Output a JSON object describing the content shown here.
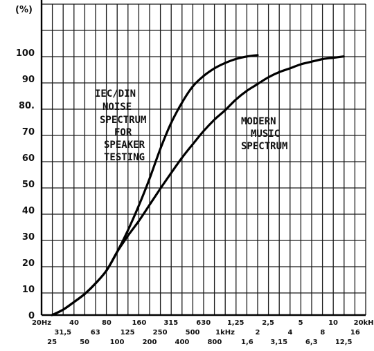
{
  "chart_data": {
    "type": "line",
    "ylabel": "(%)",
    "ylim": [
      0,
      100
    ],
    "yticks": [
      0,
      10,
      20,
      30,
      40,
      50,
      60,
      70,
      80,
      90,
      100
    ],
    "ytick_labels": [
      "0",
      "10",
      "20",
      "30",
      "40",
      "50",
      "60",
      "70",
      "80.",
      "90",
      "100"
    ],
    "xscale": "log",
    "xlim": [
      20,
      20000
    ],
    "x_row1": [
      {
        "hz": 20,
        "label": "20Hz"
      },
      {
        "hz": 40,
        "label": "40"
      },
      {
        "hz": 80,
        "label": "80"
      },
      {
        "hz": 160,
        "label": "160"
      },
      {
        "hz": 315,
        "label": "315"
      },
      {
        "hz": 630,
        "label": "630"
      },
      {
        "hz": 1250,
        "label": "1,25"
      },
      {
        "hz": 2500,
        "label": "2,5"
      },
      {
        "hz": 5000,
        "label": "5"
      },
      {
        "hz": 10000,
        "label": "10"
      },
      {
        "hz": 20000,
        "label": "20kHz"
      }
    ],
    "x_row2": [
      {
        "hz": 31.5,
        "label": "31,5"
      },
      {
        "hz": 63,
        "label": "63"
      },
      {
        "hz": 125,
        "label": "125"
      },
      {
        "hz": 250,
        "label": "250"
      },
      {
        "hz": 500,
        "label": "500"
      },
      {
        "hz": 1000,
        "label": "1kHz"
      },
      {
        "hz": 2000,
        "label": "2"
      },
      {
        "hz": 4000,
        "label": "4"
      },
      {
        "hz": 8000,
        "label": "8"
      },
      {
        "hz": 16000,
        "label": "16"
      }
    ],
    "x_row3": [
      {
        "hz": 25,
        "label": "25"
      },
      {
        "hz": 50,
        "label": "50"
      },
      {
        "hz": 100,
        "label": "100"
      },
      {
        "hz": 200,
        "label": "200"
      },
      {
        "hz": 400,
        "label": "400"
      },
      {
        "hz": 800,
        "label": "800"
      },
      {
        "hz": 1600,
        "label": "1,6"
      },
      {
        "hz": 3150,
        "label": "3,15"
      },
      {
        "hz": 6300,
        "label": "6,3"
      },
      {
        "hz": 12500,
        "label": "12,5"
      }
    ],
    "series": [
      {
        "name": "IEC/DIN NOISE SPECTRUM FOR SPEAKER TESTING",
        "points": [
          [
            25,
            0
          ],
          [
            31.5,
            2
          ],
          [
            40,
            5
          ],
          [
            50,
            8
          ],
          [
            63,
            12
          ],
          [
            80,
            17
          ],
          [
            100,
            24
          ],
          [
            125,
            32
          ],
          [
            160,
            42
          ],
          [
            200,
            52
          ],
          [
            250,
            63
          ],
          [
            315,
            73
          ],
          [
            400,
            81
          ],
          [
            500,
            87
          ],
          [
            630,
            91
          ],
          [
            800,
            94
          ],
          [
            1000,
            96
          ],
          [
            1250,
            97.5
          ],
          [
            1600,
            98.5
          ],
          [
            2000,
            99
          ]
        ]
      },
      {
        "name": "MODERN MUSIC SPECTRUM",
        "points": [
          [
            25,
            0
          ],
          [
            31.5,
            2
          ],
          [
            40,
            5
          ],
          [
            50,
            8
          ],
          [
            63,
            12
          ],
          [
            80,
            17
          ],
          [
            100,
            24
          ],
          [
            125,
            30
          ],
          [
            160,
            36
          ],
          [
            200,
            42
          ],
          [
            250,
            48
          ],
          [
            315,
            54
          ],
          [
            400,
            60
          ],
          [
            500,
            65
          ],
          [
            630,
            70
          ],
          [
            800,
            74.5
          ],
          [
            1000,
            78
          ],
          [
            1250,
            82
          ],
          [
            1600,
            85.5
          ],
          [
            2000,
            88
          ],
          [
            2500,
            90.5
          ],
          [
            3150,
            92.5
          ],
          [
            4000,
            94
          ],
          [
            5000,
            95.5
          ],
          [
            6300,
            96.5
          ],
          [
            8000,
            97.5
          ],
          [
            10000,
            98
          ],
          [
            12500,
            98.5
          ]
        ]
      }
    ],
    "annotations": [
      {
        "lines": [
          "IEC/DIN",
          "NOISE",
          "SPECTRUM",
          "FOR",
          "SPEAKER",
          "TESTING"
        ]
      },
      {
        "lines": [
          "MODERN",
          "MUSIC",
          "SPECTRUM"
        ]
      }
    ]
  }
}
